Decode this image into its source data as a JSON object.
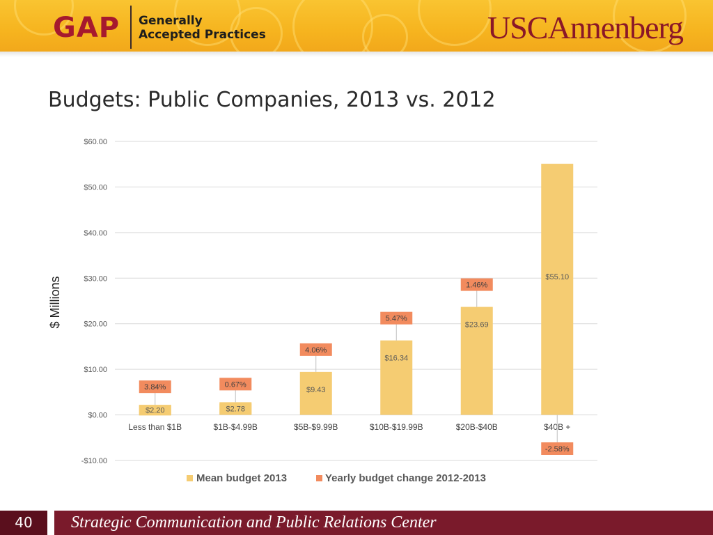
{
  "header": {
    "gap_logo": "GAP",
    "gap_subtitle_line1": "Generally",
    "gap_subtitle_line2": "Accepted Practices",
    "usc_logo": "USCAnnenberg"
  },
  "slide": {
    "title": "Budgets: Public Companies, 2013 vs. 2012",
    "page_number": "40",
    "footer_text": "Strategic Communication and Public Relations Center"
  },
  "colors": {
    "header_gold": "#f6b41f",
    "brand_cardinal": "#7a1a2b",
    "bar_mean": "#f5cc72",
    "bar_change": "#f28b5e"
  },
  "chart_data": {
    "type": "bar",
    "categories": [
      "Less than $1B",
      "$1B-$4.99B",
      "$5B-$9.99B",
      "$10B-$19.99B",
      "$20B-$40B",
      "$40B +"
    ],
    "series": [
      {
        "name": "Mean budget 2013",
        "values": [
          2.2,
          2.78,
          9.43,
          16.34,
          23.69,
          55.1
        ],
        "labels": [
          "$2.20",
          "$2.78",
          "$9.43",
          "$16.34",
          "$23.69",
          "$55.10"
        ]
      },
      {
        "name": "Yearly budget change 2012-2013",
        "values": [
          3.84,
          0.67,
          4.06,
          5.47,
          1.46,
          -2.58
        ],
        "labels": [
          "3.84%",
          "0.67%",
          "4.06%",
          "5.47%",
          "1.46%",
          "-2.58%"
        ]
      }
    ],
    "ylabel": "$ Millions",
    "xlabel": "",
    "ylim": [
      -10,
      60
    ],
    "yticks": [
      60,
      50,
      40,
      30,
      20,
      10,
      0,
      -10
    ],
    "ytick_labels": [
      "$60.00",
      "$50.00",
      "$40.00",
      "$30.00",
      "$20.00",
      "$10.00",
      "$0.00",
      "-$10.00"
    ],
    "grid": true,
    "legend": "bottom"
  }
}
